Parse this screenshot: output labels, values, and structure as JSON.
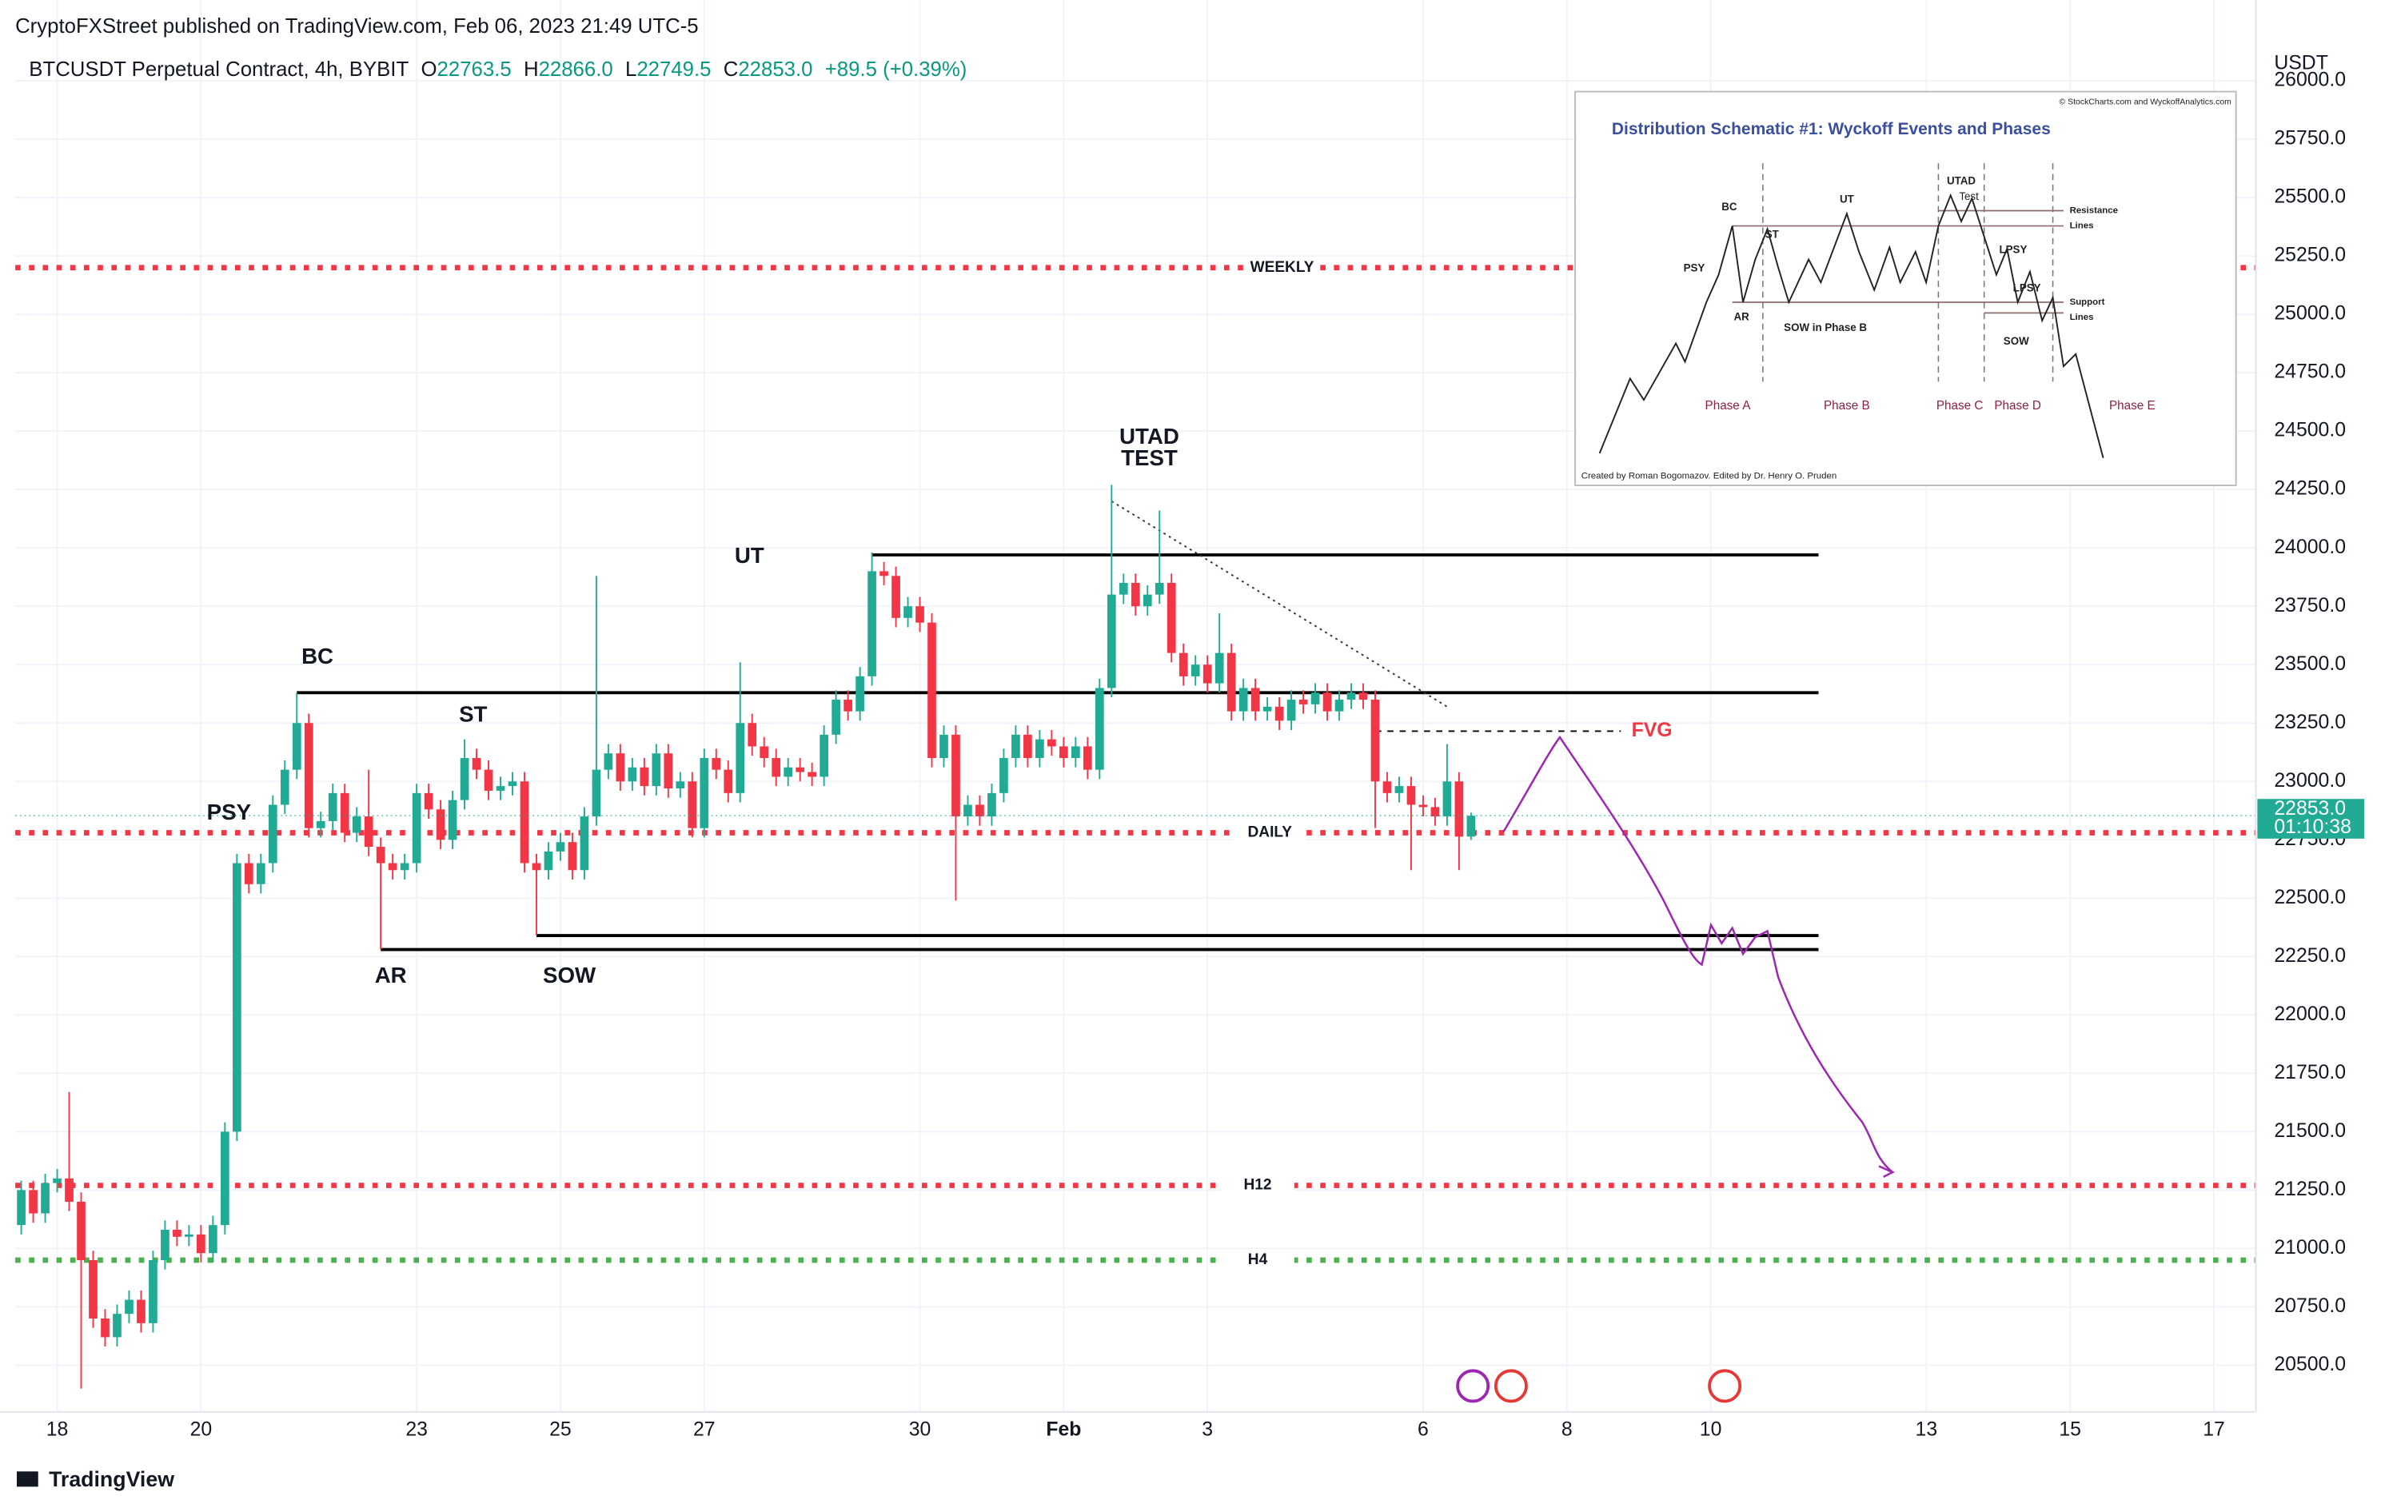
{
  "header": {
    "publisher": "CryptoFXStreet published on TradingView.com, Feb 06, 2023 21:49 UTC-5",
    "symbol": "BTCUSDT Perpetual Contract, 4h, BYBIT",
    "ohlc_labels": [
      "O",
      "H",
      "L",
      "C"
    ],
    "ohlc_values": [
      "22763.5",
      "22866.0",
      "22749.5",
      "22853.0"
    ],
    "change": "+89.5 (+0.39%)"
  },
  "chart_data": {
    "type": "candlestick",
    "currency": "USDT",
    "up_color": "#22ab94",
    "down_color": "#f23645",
    "grid": true,
    "xlim": [
      -14,
      734
    ],
    "xticks": [
      {
        "value": 0,
        "label": "18"
      },
      {
        "value": 48,
        "label": "20"
      },
      {
        "value": 120,
        "label": "23"
      },
      {
        "value": 168,
        "label": "25"
      },
      {
        "value": 216,
        "label": "27"
      },
      {
        "value": 288,
        "label": "30"
      },
      {
        "value": 336,
        "label": "Feb"
      },
      {
        "value": 384,
        "label": "3"
      },
      {
        "value": 456,
        "label": "6"
      },
      {
        "value": 504,
        "label": "8"
      },
      {
        "value": 552,
        "label": "10"
      },
      {
        "value": 624,
        "label": "13"
      },
      {
        "value": 672,
        "label": "15"
      },
      {
        "value": 720,
        "label": "17"
      }
    ],
    "ylim": [
      20300,
      26150
    ],
    "yticks": [
      {
        "value": 20500,
        "label": "20500.0"
      },
      {
        "value": 20750,
        "label": "20750.0"
      },
      {
        "value": 21000,
        "label": "21000.0"
      },
      {
        "value": 21250,
        "label": "21250.0"
      },
      {
        "value": 21500,
        "label": "21500.0"
      },
      {
        "value": 21750,
        "label": "21750.0"
      },
      {
        "value": 22000,
        "label": "22000.0"
      },
      {
        "value": 22250,
        "label": "22250.0"
      },
      {
        "value": 22500,
        "label": "22500.0"
      },
      {
        "value": 22750,
        "label": "22750.0"
      },
      {
        "value": 23000,
        "label": "23000.0"
      },
      {
        "value": 23250,
        "label": "23250.0"
      },
      {
        "value": 23500,
        "label": "23500.0"
      },
      {
        "value": 23750,
        "label": "23750.0"
      },
      {
        "value": 24000,
        "label": "24000.0"
      },
      {
        "value": 24250,
        "label": "24250.0"
      },
      {
        "value": 24500,
        "label": "24500.0"
      },
      {
        "value": 24750,
        "label": "24750.0"
      },
      {
        "value": 25000,
        "label": "25000.0"
      },
      {
        "value": 25250,
        "label": "25250.0"
      },
      {
        "value": 25500,
        "label": "25500.0"
      },
      {
        "value": 25750,
        "label": "25750.0"
      },
      {
        "value": 26000,
        "label": "26000.0"
      }
    ],
    "x": [
      -12,
      -8,
      -4,
      0,
      4,
      8,
      12,
      16,
      20,
      24,
      28,
      32,
      36,
      40,
      44,
      48,
      52,
      56,
      60,
      64,
      68,
      72,
      76,
      80,
      84,
      88,
      92,
      96,
      100,
      104,
      108,
      112,
      116,
      120,
      124,
      128,
      132,
      136,
      140,
      144,
      148,
      152,
      156,
      160,
      164,
      168,
      172,
      176,
      180,
      184,
      188,
      192,
      196,
      200,
      204,
      208,
      212,
      216,
      220,
      224,
      228,
      232,
      236,
      240,
      244,
      248,
      252,
      256,
      260,
      264,
      268,
      272,
      276,
      280,
      284,
      288,
      292,
      296,
      300,
      304,
      308,
      312,
      316,
      320,
      324,
      328,
      332,
      336,
      340,
      344,
      348,
      352,
      356,
      360,
      364,
      368,
      372,
      376,
      380,
      384,
      388,
      392,
      396,
      400,
      404,
      408,
      412,
      416,
      420,
      424,
      428,
      432,
      436,
      440,
      444,
      448,
      452,
      456,
      460,
      464,
      468,
      472
    ],
    "open": [
      21100,
      21250,
      21150,
      21280,
      21300,
      21200,
      20950,
      20700,
      20620,
      20720,
      20780,
      20680,
      20950,
      21080,
      21050,
      21060,
      20980,
      21100,
      21500,
      22650,
      22560,
      22650,
      22900,
      23050,
      23250,
      22800,
      22830,
      22950,
      22780,
      22850,
      22720,
      22650,
      22620,
      22650,
      22950,
      22880,
      22750,
      22920,
      23100,
      23050,
      22960,
      22980,
      23000,
      22650,
      22620,
      22700,
      22740,
      22620,
      22850,
      23050,
      23120,
      23000,
      23060,
      22980,
      23120,
      22970,
      23000,
      22800,
      23100,
      23050,
      22950,
      23250,
      23150,
      23100,
      23020,
      23060,
      23040,
      23020,
      23200,
      23350,
      23300,
      23450,
      23900,
      23880,
      23700,
      23750,
      23680,
      23100,
      23200,
      22850,
      22900,
      22850,
      22950,
      23100,
      23200,
      23100,
      23180,
      23150,
      23100,
      23150,
      23050,
      23400,
      23800,
      23850,
      23750,
      23800,
      23850,
      23550,
      23450,
      23500,
      23420,
      23550,
      23300,
      23400,
      23300,
      23320,
      23260,
      23350,
      23330,
      23380,
      23300,
      23350,
      23380,
      23350,
      23000,
      22950,
      22980,
      22900,
      22890,
      22850,
      23000,
      22763.5
    ],
    "high": [
      21290,
      21290,
      21320,
      21340,
      21670,
      21240,
      20990,
      20740,
      20760,
      20820,
      20820,
      20990,
      21120,
      21120,
      21100,
      21100,
      21140,
      21540,
      22690,
      22690,
      22690,
      22940,
      23090,
      23380,
      23290,
      22870,
      22990,
      22990,
      22890,
      23050,
      22760,
      22690,
      22690,
      22990,
      22990,
      22920,
      22960,
      23180,
      23140,
      23090,
      23020,
      23040,
      23040,
      22690,
      22740,
      22780,
      22780,
      22890,
      23880,
      23160,
      23160,
      23100,
      23100,
      23160,
      23160,
      23040,
      23040,
      23140,
      23140,
      23090,
      23510,
      23290,
      23190,
      23140,
      23100,
      23100,
      23080,
      23240,
      23390,
      23390,
      23490,
      23980,
      23940,
      23920,
      23790,
      23790,
      23720,
      23240,
      23240,
      22940,
      22940,
      22990,
      23140,
      23240,
      23240,
      23220,
      23220,
      23190,
      23190,
      23190,
      23440,
      24270,
      23890,
      23890,
      23840,
      24160,
      23890,
      23590,
      23540,
      23540,
      23720,
      23590,
      23440,
      23440,
      23360,
      23360,
      23390,
      23390,
      23420,
      23420,
      23390,
      23420,
      23420,
      23390,
      23040,
      23020,
      23020,
      22940,
      22930,
      23160,
      23040,
      22866
    ],
    "low": [
      21060,
      21110,
      21110,
      21240,
      21160,
      20400,
      20660,
      20580,
      20580,
      20680,
      20640,
      20640,
      20910,
      21010,
      21010,
      20940,
      20940,
      21060,
      21460,
      22520,
      22520,
      22610,
      22860,
      23010,
      22760,
      22760,
      22790,
      22740,
      22740,
      22680,
      22280,
      22580,
      22580,
      22610,
      22840,
      22710,
      22710,
      22880,
      23010,
      22920,
      22920,
      22940,
      22610,
      22340,
      22580,
      22660,
      22580,
      22580,
      22810,
      23010,
      22960,
      22960,
      22940,
      22940,
      22930,
      22930,
      22760,
      22760,
      23010,
      22910,
      22910,
      23110,
      23060,
      22980,
      22980,
      23000,
      22980,
      22980,
      23160,
      23260,
      23260,
      23410,
      23840,
      23660,
      23660,
      23640,
      23060,
      23060,
      22490,
      22810,
      22810,
      22810,
      22910,
      23060,
      23060,
      23060,
      23110,
      23060,
      23060,
      23010,
      23010,
      23360,
      23760,
      23710,
      23710,
      23760,
      23510,
      23410,
      23410,
      23380,
      23380,
      23260,
      23260,
      23260,
      23260,
      23220,
      23220,
      23290,
      23290,
      23260,
      23260,
      23310,
      23310,
      22800,
      22910,
      22910,
      22620,
      22850,
      22810,
      22810,
      22620,
      22749.5
    ],
    "close": [
      21250,
      21150,
      21280,
      21300,
      21200,
      20950,
      20700,
      20620,
      20720,
      20780,
      20680,
      20950,
      21080,
      21050,
      21060,
      20980,
      21100,
      21500,
      22650,
      22560,
      22650,
      22900,
      23050,
      23250,
      22800,
      22830,
      22950,
      22780,
      22850,
      22720,
      22650,
      22620,
      22650,
      22950,
      22880,
      22750,
      22920,
      23100,
      23050,
      22960,
      22980,
      23000,
      22650,
      22620,
      22700,
      22740,
      22620,
      22850,
      23050,
      23120,
      23000,
      23060,
      22980,
      23120,
      22970,
      23000,
      22800,
      23100,
      23050,
      22950,
      23250,
      23150,
      23100,
      23020,
      23060,
      23040,
      23020,
      23200,
      23350,
      23300,
      23450,
      23900,
      23880,
      23700,
      23750,
      23680,
      23100,
      23200,
      22850,
      22900,
      22850,
      22950,
      23100,
      23200,
      23100,
      23180,
      23150,
      23100,
      23150,
      23050,
      23400,
      23800,
      23850,
      23750,
      23800,
      23850,
      23550,
      23450,
      23500,
      23420,
      23550,
      23300,
      23400,
      23300,
      23320,
      23260,
      23350,
      23330,
      23380,
      23300,
      23350,
      23380,
      23350,
      23000,
      22950,
      22980,
      22900,
      22890,
      22850,
      23000,
      22763.5,
      22853
    ],
    "levels": [
      {
        "label": "WEEKLY",
        "value": 25200,
        "color": "#f23645"
      },
      {
        "label": "DAILY",
        "value": 22780,
        "color": "#f23645"
      },
      {
        "label": "H12",
        "value": 21270,
        "color": "#f23645"
      },
      {
        "label": "H4",
        "value": 20950,
        "color": "#4caf50"
      }
    ],
    "hlines": [
      {
        "value": 23970,
        "from": 272,
        "to": 588
      },
      {
        "value": 23380,
        "from": 80,
        "to": 588
      },
      {
        "value": 22340,
        "from": 160,
        "to": 588
      },
      {
        "value": 22280,
        "from": 108,
        "to": 588
      }
    ],
    "fvg": {
      "label": "FVG",
      "value": 23215,
      "from": 440,
      "to": 522
    },
    "trendline": {
      "x": [
        352,
        464
      ],
      "y": [
        24200,
        23320
      ]
    },
    "annotations": [
      "PSY",
      "BC",
      "ST",
      "AR",
      "SOW",
      "UT",
      "UTAD",
      "TEST"
    ],
    "last_price_label": "22853.0",
    "countdown": "01:10:38"
  },
  "inset": {
    "credit": "© StockCharts.com and WyckoffAnalytics.com",
    "title": "Distribution Schematic #1: Wyckoff Events and Phases",
    "labels": [
      "PSY",
      "BC",
      "AR",
      "ST",
      "SOW in Phase B",
      "UT",
      "UTAD",
      "Test",
      "LPSY",
      "LPSY",
      "SOW",
      "Resistance",
      "Lines",
      "Support",
      "Lines"
    ],
    "phases": [
      "Phase A",
      "Phase B",
      "Phase C",
      "Phase D",
      "Phase E"
    ],
    "footer": "Created by Roman Bogomazov. Edited by Dr. Henry O. Pruden"
  },
  "footer": "TradingView"
}
